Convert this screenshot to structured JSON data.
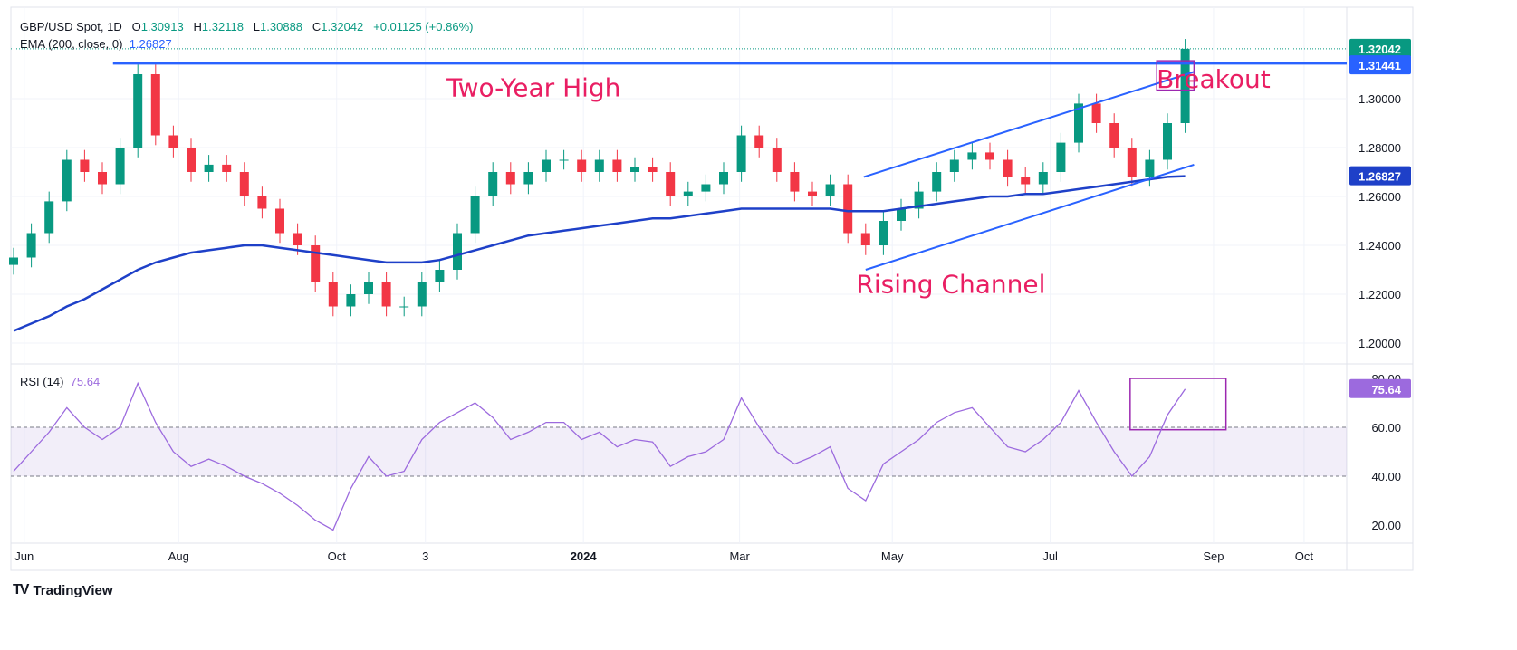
{
  "header": {
    "symbol": "GBP/USD Spot, 1D",
    "o_label": "O",
    "o": "1.30913",
    "h_label": "H",
    "h": "1.32118",
    "l_label": "L",
    "l": "1.30888",
    "c_label": "C",
    "c": "1.32042",
    "change": "+0.01125 (+0.86%)",
    "ema_label": "EMA (200, close, 0)",
    "ema_value": "1.26827",
    "rsi_label": "RSI (14)",
    "rsi_value": "75.64"
  },
  "branding": {
    "name": "TradingView"
  },
  "colors": {
    "up": "#089981",
    "down": "#f23645",
    "ema": "#1e40c8",
    "line": "#2962ff",
    "rsi": "#9c6ade",
    "box": "#9c27b0",
    "annot": "#e91e63"
  },
  "chart_data": {
    "type": "candlestick",
    "title": "GBP/USD Spot, 1D",
    "x_unit": "week index from 2023-05-29",
    "x_ticks": [
      {
        "label": "Jun",
        "x": 0.6
      },
      {
        "label": "Aug",
        "x": 9.3
      },
      {
        "label": "Oct",
        "x": 18.2
      },
      {
        "label": "3",
        "x": 23.2
      },
      {
        "label": "2024",
        "x": 32.1
      },
      {
        "label": "Mar",
        "x": 40.9
      },
      {
        "label": "May",
        "x": 49.5
      },
      {
        "label": "Jul",
        "x": 58.4
      },
      {
        "label": "Sep",
        "x": 67.6
      },
      {
        "label": "Oct",
        "x": 72.7
      }
    ],
    "price_ticks": [
      "1.30000",
      "1.28000",
      "1.26000",
      "1.24000",
      "1.22000",
      "1.20000"
    ],
    "price_tick_values": [
      1.3,
      1.28,
      1.26,
      1.24,
      1.22,
      1.2
    ],
    "ylim": [
      1.195,
      1.335
    ],
    "closes": [
      1.235,
      1.245,
      1.258,
      1.275,
      1.27,
      1.265,
      1.28,
      1.31,
      1.285,
      1.28,
      1.27,
      1.273,
      1.27,
      1.26,
      1.255,
      1.245,
      1.24,
      1.225,
      1.215,
      1.22,
      1.225,
      1.215,
      1.215,
      1.225,
      1.23,
      1.245,
      1.26,
      1.27,
      1.265,
      1.27,
      1.275,
      1.275,
      1.27,
      1.275,
      1.27,
      1.272,
      1.27,
      1.26,
      1.262,
      1.265,
      1.27,
      1.285,
      1.28,
      1.27,
      1.262,
      1.26,
      1.265,
      1.245,
      1.24,
      1.25,
      1.255,
      1.262,
      1.27,
      1.275,
      1.278,
      1.275,
      1.268,
      1.265,
      1.27,
      1.282,
      1.298,
      1.29,
      1.28,
      1.268,
      1.275,
      1.29,
      1.32042
    ],
    "ema200": [
      1.205,
      1.208,
      1.211,
      1.215,
      1.218,
      1.222,
      1.226,
      1.23,
      1.233,
      1.235,
      1.237,
      1.238,
      1.239,
      1.24,
      1.24,
      1.239,
      1.238,
      1.237,
      1.236,
      1.235,
      1.234,
      1.233,
      1.233,
      1.233,
      1.234,
      1.236,
      1.238,
      1.24,
      1.242,
      1.244,
      1.245,
      1.246,
      1.247,
      1.248,
      1.249,
      1.25,
      1.251,
      1.251,
      1.252,
      1.253,
      1.254,
      1.255,
      1.255,
      1.255,
      1.255,
      1.255,
      1.255,
      1.254,
      1.254,
      1.254,
      1.255,
      1.256,
      1.257,
      1.258,
      1.259,
      1.26,
      1.26,
      1.261,
      1.261,
      1.262,
      1.263,
      1.264,
      1.265,
      1.266,
      1.267,
      1.268,
      1.26827
    ],
    "rsi_ticks": [
      "80.00",
      "60.00",
      "40.00",
      "20.00"
    ],
    "rsi_tick_values": [
      80,
      60,
      40,
      20
    ],
    "rsi_bands": [
      40,
      60
    ],
    "rsi": [
      42,
      50,
      58,
      68,
      60,
      55,
      60,
      78,
      62,
      50,
      44,
      47,
      44,
      40,
      37,
      33,
      28,
      22,
      18,
      35,
      48,
      40,
      42,
      55,
      62,
      66,
      70,
      64,
      55,
      58,
      62,
      62,
      55,
      58,
      52,
      55,
      54,
      44,
      48,
      50,
      55,
      72,
      60,
      50,
      45,
      48,
      52,
      35,
      30,
      45,
      50,
      55,
      62,
      66,
      68,
      60,
      52,
      50,
      55,
      62,
      75,
      62,
      50,
      40,
      48,
      65,
      75.64
    ],
    "resistance": {
      "value": 1.31441,
      "label": "1.31441",
      "from_week": 5.6
    },
    "last_price_label": "1.32042",
    "ema_label": "1.26827",
    "rsi_last_label": "75.64",
    "channel": {
      "lower": [
        [
          48,
          1.23
        ],
        [
          66.5,
          1.273
        ]
      ],
      "upper": [
        [
          47.9,
          1.268
        ],
        [
          66.5,
          1.311
        ]
      ]
    },
    "price_box": {
      "weeks": [
        64.4,
        66.5
      ],
      "prices": [
        1.3035,
        1.3155
      ]
    },
    "rsi_box": {
      "weeks": [
        62.9,
        68.3
      ],
      "values": [
        59,
        80
      ]
    },
    "annotations": [
      {
        "text": "Two-Year High",
        "week": 29.3,
        "price": 1.301
      },
      {
        "text": "Breakout",
        "week": 67.6,
        "price": 1.3045
      },
      {
        "text": "Rising Channel",
        "week": 52.8,
        "price": 1.2205
      }
    ]
  }
}
